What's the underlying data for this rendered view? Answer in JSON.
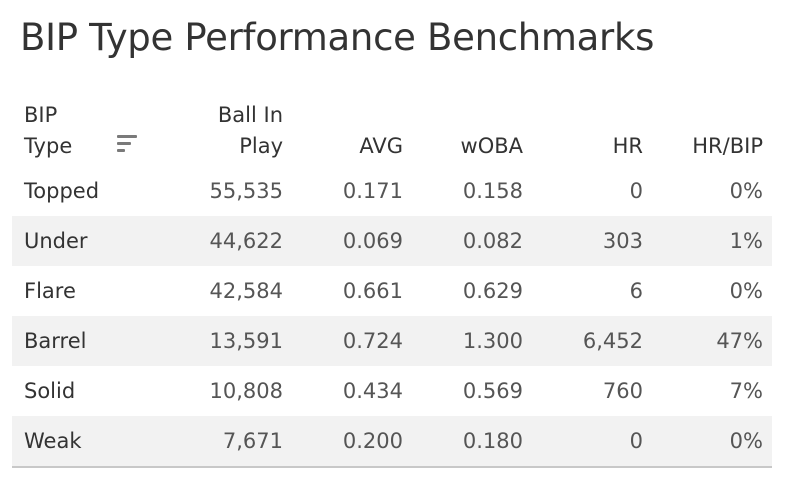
{
  "title": "BIP Type Performance Benchmarks",
  "columns": {
    "bip_type": [
      "BIP",
      "Type"
    ],
    "ball_in_play": [
      "Ball In",
      "Play"
    ],
    "avg": "AVG",
    "woba": "wOBA",
    "hr": "HR",
    "hr_bip": "HR/BIP"
  },
  "sort_icon": "sort-descending-icon",
  "rows": [
    {
      "type": "Topped",
      "bip": "55,535",
      "avg": "0.171",
      "woba": "0.158",
      "hr": "0",
      "hr_bip": "0%"
    },
    {
      "type": "Under",
      "bip": "44,622",
      "avg": "0.069",
      "woba": "0.082",
      "hr": "303",
      "hr_bip": "1%"
    },
    {
      "type": "Flare",
      "bip": "42,584",
      "avg": "0.661",
      "woba": "0.629",
      "hr": "6",
      "hr_bip": "0%"
    },
    {
      "type": "Barrel",
      "bip": "13,591",
      "avg": "0.724",
      "woba": "1.300",
      "hr": "6,452",
      "hr_bip": "47%"
    },
    {
      "type": "Solid",
      "bip": "10,808",
      "avg": "0.434",
      "woba": "0.569",
      "hr": "760",
      "hr_bip": "7%"
    },
    {
      "type": "Weak",
      "bip": "7,671",
      "avg": "0.200",
      "woba": "0.180",
      "hr": "0",
      "hr_bip": "0%"
    }
  ]
}
